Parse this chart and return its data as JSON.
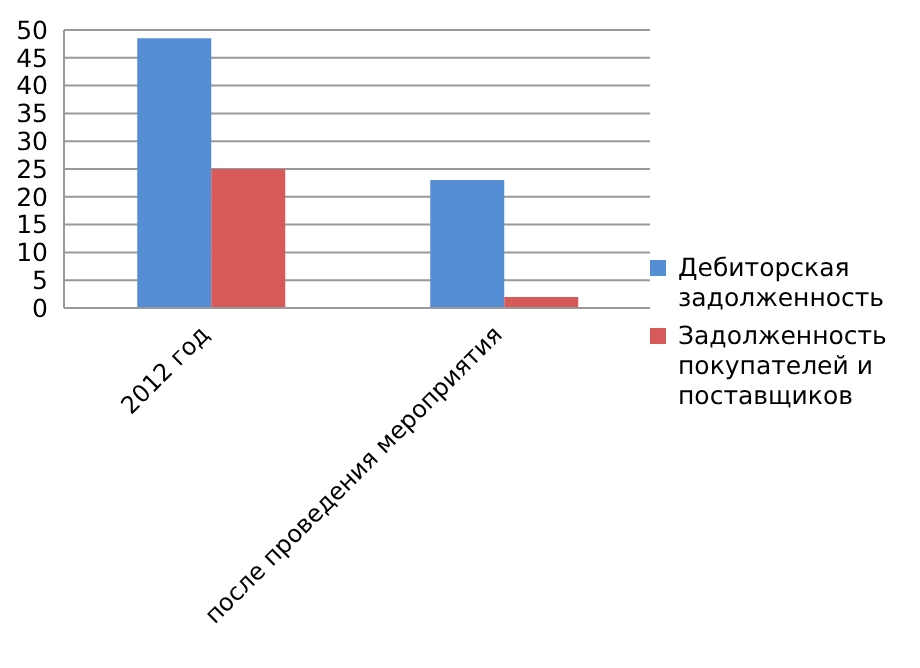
{
  "chart_data": {
    "type": "bar",
    "categories": [
      "2012 год",
      "после проведения мероприятия"
    ],
    "series": [
      {
        "name": "Дебиторская задолженность",
        "color": "#558ed5",
        "values": [
          48.5,
          23
        ]
      },
      {
        "name": "Задолженность покупателей и поставщиков",
        "color": "#d55a58",
        "values": [
          25,
          2
        ]
      }
    ],
    "ylim": [
      0,
      50
    ],
    "yticks": [
      0,
      5,
      10,
      15,
      20,
      25,
      30,
      35,
      40,
      45,
      50
    ],
    "grid": "y",
    "legend": "right"
  }
}
